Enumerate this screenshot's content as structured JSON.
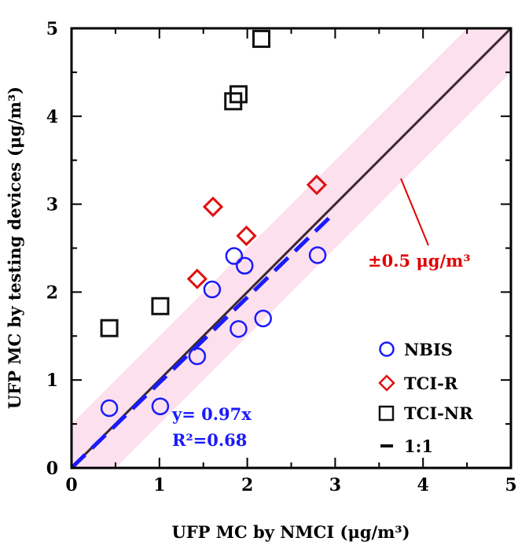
{
  "chart_data": {
    "type": "scatter",
    "xlabel": "UFP MC by NMCI (μg/m³)",
    "ylabel": "UFP MC by testing devices (μg/m³)",
    "xlim": [
      0,
      5
    ],
    "ylim": [
      0,
      5
    ],
    "x_ticks": [
      "0",
      "1",
      "2",
      "3",
      "4",
      "5"
    ],
    "y_ticks": [
      "0",
      "1",
      "2",
      "3",
      "4",
      "5"
    ],
    "grid": false,
    "legend_position": "bottom-right",
    "series": [
      {
        "name": "NBIS",
        "marker": "circle",
        "color": "#1a1aff",
        "points": [
          {
            "x": 0.43,
            "y": 0.68
          },
          {
            "x": 1.01,
            "y": 0.7
          },
          {
            "x": 1.43,
            "y": 1.27
          },
          {
            "x": 1.6,
            "y": 2.03
          },
          {
            "x": 1.85,
            "y": 2.41
          },
          {
            "x": 1.97,
            "y": 2.3
          },
          {
            "x": 1.9,
            "y": 1.58
          },
          {
            "x": 2.18,
            "y": 1.7
          },
          {
            "x": 2.8,
            "y": 2.42
          }
        ]
      },
      {
        "name": "TCI-R",
        "marker": "diamond",
        "color": "#e01010",
        "points": [
          {
            "x": 1.43,
            "y": 2.15
          },
          {
            "x": 1.61,
            "y": 2.97
          },
          {
            "x": 1.99,
            "y": 2.64
          },
          {
            "x": 2.79,
            "y": 3.22
          }
        ]
      },
      {
        "name": "TCI-NR",
        "marker": "square",
        "color": "#111111",
        "points": [
          {
            "x": 0.43,
            "y": 1.59
          },
          {
            "x": 1.01,
            "y": 1.84
          },
          {
            "x": 1.84,
            "y": 4.17
          },
          {
            "x": 1.9,
            "y": 4.25
          },
          {
            "x": 2.16,
            "y": 4.88
          }
        ]
      },
      {
        "name": "1:1",
        "marker": "line",
        "color": "#3a2a30",
        "x": [
          0,
          5
        ],
        "y": [
          0,
          5
        ]
      }
    ],
    "fit": {
      "slope": 0.97,
      "x_range": [
        0,
        3
      ],
      "color": "#1a1aff",
      "equation": "y= 0.97x",
      "r2_label": "R²=0.68"
    },
    "band": {
      "half_width": 0.5,
      "color": "#fde0ee",
      "label": "±0.5 μg/m³",
      "label_color": "#e00000"
    }
  }
}
